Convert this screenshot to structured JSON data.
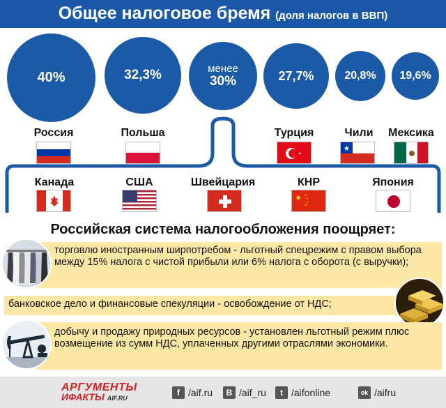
{
  "header": {
    "title": "Общее налоговое бремя",
    "subtitle": "(доля налогов в ВВП)"
  },
  "bubbles": [
    {
      "value": "40%"
    },
    {
      "value": "32,3%"
    },
    {
      "line1": "менее",
      "line2": "30%"
    },
    {
      "value": "27,7%"
    },
    {
      "value": "20,8%"
    },
    {
      "value": "19,6%"
    }
  ],
  "countries_top": [
    "Россия",
    "Польша",
    "Турция",
    "Чили",
    "Мексика"
  ],
  "countries_bottom": [
    "Канада",
    "США",
    "Швейцария",
    "КНР",
    "Япония"
  ],
  "colors": {
    "header": "#1b59a8",
    "bubble": "#1a5aa6",
    "item_bg": "#fce8a4",
    "logo": "#d62027"
  },
  "section": {
    "title": "Российская система налогообложения поощряет:",
    "items": [
      "торговлю иностранным ширпотребом - льготный спецрежим с правом выбора между 15% налога с чистой прибыли или 6% налога с оборота (с выручки);",
      "банковское дело и финансовые спекуляции - освобождение от НДС;",
      "добычу и продажу природных ресурсов - установлен льготный режим плюс возмещение из сумм НДС, уплаченных другими отраслями экономики."
    ],
    "icons": [
      "clothes-rack-photo",
      "gold-bars-photo",
      "oil-pump-photo"
    ]
  },
  "footer": {
    "logo_line1": "АРГУМЕНТЫ",
    "logo_line2": "ИФАКТЫ",
    "logo_suffix": "AIF.RU",
    "links": [
      {
        "icon": "f",
        "name": "facebook-icon",
        "text": "/aif.ru"
      },
      {
        "icon": "В",
        "name": "vk-icon",
        "text": "/aif_ru"
      },
      {
        "icon": "t",
        "name": "twitter-icon",
        "text": "/aifonline"
      },
      {
        "icon": "ok",
        "name": "odnoklassniki-icon",
        "text": "/aifru"
      }
    ]
  }
}
